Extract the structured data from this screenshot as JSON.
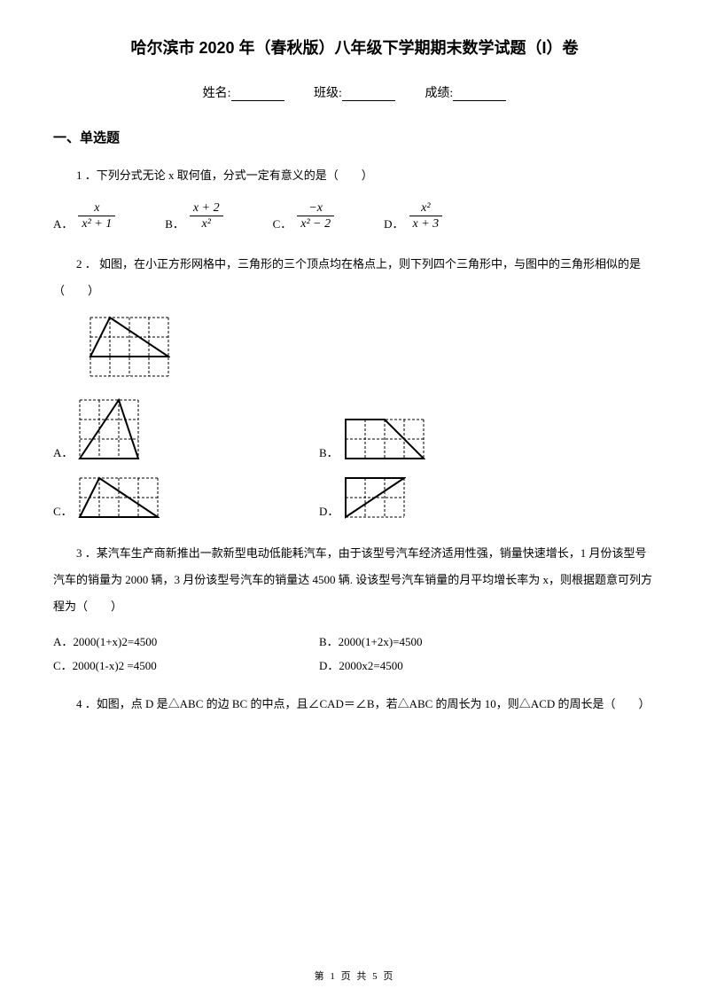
{
  "title": "哈尔滨市 2020 年（春秋版）八年级下学期期末数学试题（I）卷",
  "info": {
    "name_label": "姓名:",
    "class_label": "班级:",
    "score_label": "成绩:"
  },
  "section1": "一、单选题",
  "q1": {
    "text": "1 ．下列分式无论 x 取何值，分式一定有意义的是（　　）",
    "options": {
      "A": {
        "num": "x",
        "den": "x² + 1"
      },
      "B": {
        "num": "x + 2",
        "den": "x²"
      },
      "C": {
        "num": "−x",
        "den": "x² − 2"
      },
      "D": {
        "num": "x²",
        "den": "x + 3"
      }
    }
  },
  "q2": {
    "text": "2 ． 如图，在小正方形网格中，三角形的三个顶点均在格点上，则下列四个三角形中，与图中的三角形相似的是（　　）",
    "grid": {
      "stroke": "#000000",
      "dash": "3,2",
      "fill": "#ffffff",
      "cell": 22
    },
    "ref": {
      "cols": 4,
      "rows": 3,
      "poly": [
        [
          0,
          2
        ],
        [
          1,
          0
        ],
        [
          4,
          2
        ]
      ]
    },
    "optA": {
      "cols": 3,
      "rows": 3,
      "poly": [
        [
          0,
          3
        ],
        [
          2,
          0
        ],
        [
          3,
          3
        ]
      ]
    },
    "optB": {
      "cols": 4,
      "rows": 2,
      "poly": [
        [
          0,
          0
        ],
        [
          2,
          0
        ],
        [
          4,
          2
        ],
        [
          0,
          2
        ]
      ]
    },
    "optC": {
      "cols": 4,
      "rows": 2,
      "poly": [
        [
          0,
          2
        ],
        [
          1,
          0
        ],
        [
          4,
          2
        ]
      ]
    },
    "optD": {
      "cols": 3,
      "rows": 2,
      "poly": [
        [
          0,
          2
        ],
        [
          0,
          0
        ],
        [
          3,
          0
        ]
      ]
    }
  },
  "q3": {
    "text": "3 ．某汽车生产商新推出一款新型电动低能耗汽车，由于该型号汽车经济适用性强，销量快速增长，1 月份该型号汽车的销量为 2000 辆，3 月份该型号汽车的销量达 4500 辆. 设该型号汽车销量的月平均增长率为 x，则根据题意可列方程为（　　）",
    "A": "A．2000(1+x)2=4500",
    "B": "B．2000(1+2x)=4500",
    "C": "C．2000(1-x)2 =4500",
    "D": "D．2000x2=4500"
  },
  "q4": {
    "text": "4 ．如图，点 D 是△ABC 的边 BC 的中点，且∠CAD＝∠B，若△ABC 的周长为 10，则△ACD 的周长是（　　）"
  },
  "footer": "第 1 页 共 5 页"
}
